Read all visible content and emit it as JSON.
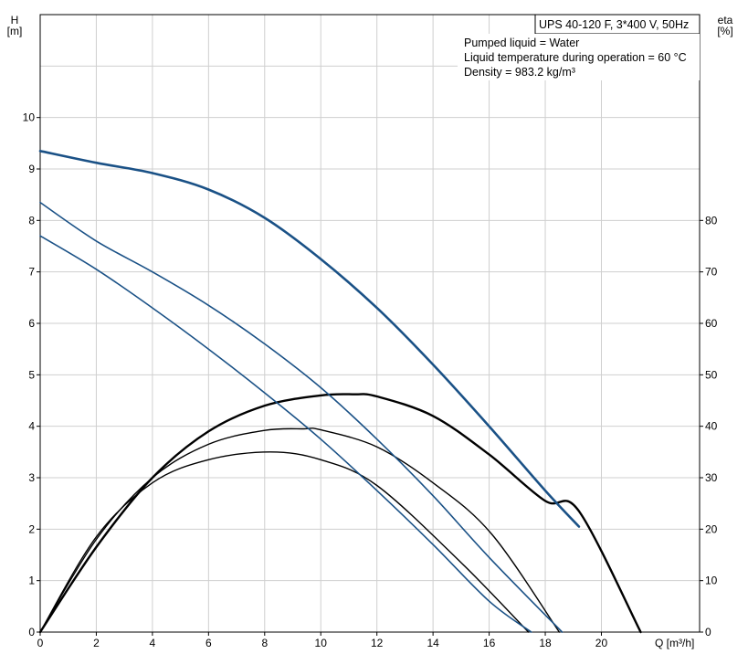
{
  "chart_data": {
    "type": "line",
    "title": "UPS 40-120 F, 3*400 V, 50Hz",
    "info_lines": [
      "Pumped liquid = Water",
      "Liquid temperature during operation = 60 °C",
      "Density = 983.2 kg/m³"
    ],
    "left_axis": {
      "label_line1": "H",
      "label_line2": "[m]",
      "range": [
        0,
        12
      ],
      "ticks": [
        "0",
        "1",
        "2",
        "3",
        "4",
        "5",
        "6",
        "7",
        "8",
        "9",
        "10"
      ]
    },
    "right_axis": {
      "label_line1": "eta",
      "label_line2": "[%]",
      "range": [
        0,
        120
      ],
      "ticks": [
        "0",
        "10",
        "20",
        "30",
        "40",
        "50",
        "60",
        "70",
        "80"
      ]
    },
    "x_axis": {
      "label": "Q [m³/h]",
      "range": [
        0,
        23.5
      ],
      "ticks": [
        "0",
        "2",
        "4",
        "6",
        "8",
        "10",
        "12",
        "14",
        "16",
        "18",
        "20"
      ]
    },
    "grid": true,
    "colors": {
      "head": "#1a5186",
      "efficiency": "#000000",
      "grid": "#cfcfcf"
    },
    "head_curves": [
      {
        "x": [
          0,
          2,
          4,
          6,
          8,
          10,
          12,
          14,
          16,
          18,
          19.2
        ],
        "y": [
          9.35,
          9.12,
          8.92,
          8.6,
          8.05,
          7.25,
          6.3,
          5.2,
          4.0,
          2.75,
          2.05
        ]
      },
      {
        "x": [
          0,
          2,
          4,
          6,
          8,
          10,
          12,
          14,
          16,
          18.6
        ],
        "y": [
          8.35,
          7.6,
          7.0,
          6.35,
          5.6,
          4.75,
          3.75,
          2.65,
          1.45,
          0.0
        ]
      },
      {
        "x": [
          0,
          2,
          4,
          6,
          8,
          10,
          12,
          14,
          16,
          17.5
        ],
        "y": [
          7.7,
          7.05,
          6.3,
          5.5,
          4.65,
          3.75,
          2.75,
          1.7,
          0.6,
          0.0
        ]
      }
    ],
    "efficiency_curves": [
      {
        "x": [
          0,
          2,
          4,
          6,
          8,
          10,
          11.2,
          12,
          14,
          16,
          18,
          19.2,
          21.4
        ],
        "y": [
          0,
          16.5,
          30.0,
          39.0,
          44.0,
          46.0,
          46.2,
          45.8,
          42.0,
          34.5,
          25.5,
          23.5,
          0
        ]
      },
      {
        "x": [
          0,
          2,
          4,
          6,
          8,
          9.4,
          10,
          12,
          14,
          16.1,
          18.5
        ],
        "y": [
          0,
          18.0,
          30.0,
          36.5,
          39.2,
          39.5,
          39.3,
          36.0,
          29.0,
          19.0,
          0
        ]
      },
      {
        "x": [
          0,
          2,
          4,
          6,
          8.2,
          10,
          12,
          15,
          17.4
        ],
        "y": [
          0,
          18.5,
          29.0,
          33.5,
          35.0,
          33.5,
          28.5,
          13.5,
          0
        ]
      }
    ]
  }
}
